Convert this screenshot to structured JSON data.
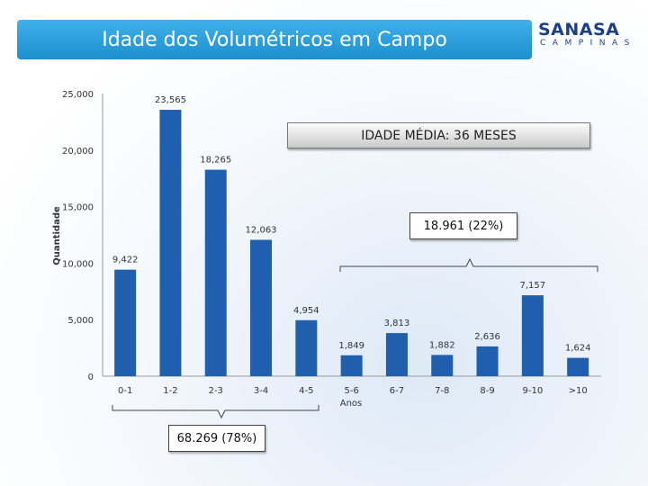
{
  "header": {
    "title": "Idade dos Volumétricos em Campo",
    "logo_main": "SANASA",
    "logo_sub": "CAMPINAS"
  },
  "annotations": {
    "average_age": "IDADE MÉDIA: 36 MESES",
    "group_right": "18.961 (22%)",
    "group_left": "68.269 (78%)"
  },
  "colors": {
    "bar": "#1f5fae",
    "banner": "#2a9fdd",
    "logo": "#1c3f8a"
  },
  "chart_data": {
    "type": "bar",
    "title": "",
    "xlabel": "Anos",
    "ylabel": "Quantidade",
    "ylim": [
      0,
      25000
    ],
    "yticks": [
      "0",
      "5,000",
      "10,000",
      "15,000",
      "20,000",
      "25,000"
    ],
    "ytick_values": [
      0,
      5000,
      10000,
      15000,
      20000,
      25000
    ],
    "grid": false,
    "categories": [
      "0-1",
      "1-2",
      "2-3",
      "3-4",
      "4-5",
      "5-6",
      "6-7",
      "7-8",
      "8-9",
      "9-10",
      ">10"
    ],
    "values": [
      9422,
      23565,
      18265,
      12063,
      4954,
      1849,
      3813,
      1882,
      2636,
      7157,
      1624
    ],
    "data_labels": [
      "9,422",
      "23,565",
      "18,265",
      "12,063",
      "4,954",
      "1,849",
      "3,813",
      "1,882",
      "2,636",
      "7,157",
      "1,624"
    ]
  }
}
